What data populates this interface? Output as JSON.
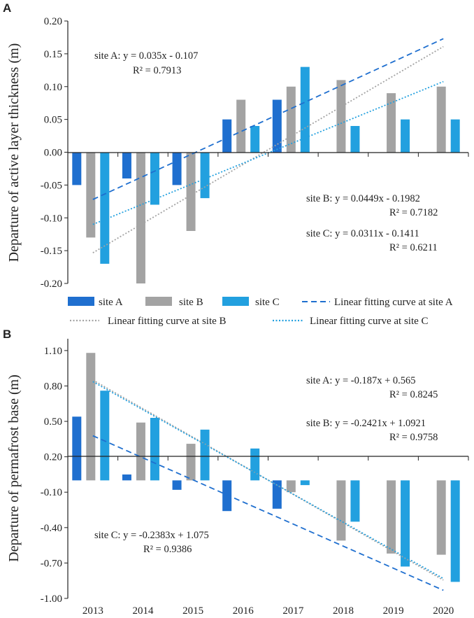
{
  "colors": {
    "site_a": "#1f6fcf",
    "site_b": "#a3a3a3",
    "site_c": "#22a0df",
    "axis": "#222222"
  },
  "chart_data": [
    {
      "panel_label": "A",
      "type": "bar",
      "categories": [
        "2013",
        "2014",
        "2015",
        "2016",
        "2017",
        "2018",
        "2019",
        "2020"
      ],
      "series": [
        {
          "name": "site A",
          "values": [
            -0.05,
            -0.04,
            -0.05,
            0.05,
            0.08,
            null,
            null,
            null
          ]
        },
        {
          "name": "site B",
          "values": [
            -0.13,
            -0.2,
            -0.12,
            0.08,
            0.1,
            0.11,
            0.09,
            0.1
          ]
        },
        {
          "name": "site C",
          "values": [
            -0.17,
            -0.08,
            -0.07,
            0.04,
            0.13,
            0.04,
            0.05,
            0.05
          ]
        }
      ],
      "trendlines": [
        {
          "name": "Linear fitting curve at site A",
          "slope": 0.035,
          "intercept": -0.107
        },
        {
          "name": "Linear fitting curve at site B",
          "slope": 0.0449,
          "intercept": -0.1982
        },
        {
          "name": "Linear fitting curve at site C",
          "slope": 0.0311,
          "intercept": -0.1411
        }
      ],
      "annotations": [
        {
          "eq": "site A:  y = 0.035x - 0.107",
          "r2": "R² = 0.7913"
        },
        {
          "eq": "site B:  y = 0.0449x - 0.1982",
          "r2": "R² = 0.7182"
        },
        {
          "eq": "site C:  y = 0.0311x - 0.1411",
          "r2": "R² = 0.6211"
        }
      ],
      "ylabel": "Departure of active layer thickness (m)",
      "ylim": [
        -0.2,
        0.2
      ],
      "yticks": [
        "-0.20",
        "-0.15",
        "-0.10",
        "-0.05",
        "0.00",
        "0.05",
        "0.10",
        "0.15",
        "0.20"
      ],
      "legend": [
        "site A",
        "site B",
        "site C",
        "Linear fitting curve at site A",
        "Linear fitting curve at site B",
        "Linear fitting curve at site C"
      ]
    },
    {
      "panel_label": "B",
      "type": "bar",
      "categories": [
        "2013",
        "2014",
        "2015",
        "2016",
        "2017",
        "2018",
        "2019",
        "2020"
      ],
      "series": [
        {
          "name": "site A",
          "values": [
            0.54,
            0.05,
            -0.08,
            -0.26,
            -0.24,
            null,
            null,
            null
          ]
        },
        {
          "name": "site B",
          "values": [
            1.08,
            0.49,
            0.31,
            null,
            -0.1,
            -0.51,
            -0.62,
            -0.63
          ]
        },
        {
          "name": "site C",
          "values": [
            0.76,
            0.53,
            0.43,
            0.27,
            -0.04,
            -0.35,
            -0.73,
            -0.86
          ]
        }
      ],
      "trendlines": [
        {
          "name": "Linear fitting curve at site A",
          "slope": -0.187,
          "intercept": 0.565
        },
        {
          "name": "Linear fitting curve at site B",
          "slope": -0.2421,
          "intercept": 1.0921
        },
        {
          "name": "Linear fitting curve at site C",
          "slope": -0.2383,
          "intercept": 1.075
        }
      ],
      "annotations": [
        {
          "eq": "site A:  y = -0.187x + 0.565",
          "r2": "R² = 0.8245"
        },
        {
          "eq": "site B:  y = -0.2421x + 1.0921",
          "r2": "R² = 0.9758"
        },
        {
          "eq": "site C:  y = -0.2383x + 1.075",
          "r2": "R² = 0.9386"
        }
      ],
      "ylabel": "Departure of permafrost base (m)",
      "ylim": [
        -1.0,
        1.2
      ],
      "yticks": [
        "-1.00",
        "-0.70",
        "-0.40",
        "-0.10",
        "0.20",
        "0.50",
        "0.80",
        "1.10"
      ],
      "ytick_values": [
        -1.0,
        -0.7,
        -0.4,
        -0.1,
        0.2,
        0.5,
        0.8,
        1.1
      ]
    }
  ]
}
